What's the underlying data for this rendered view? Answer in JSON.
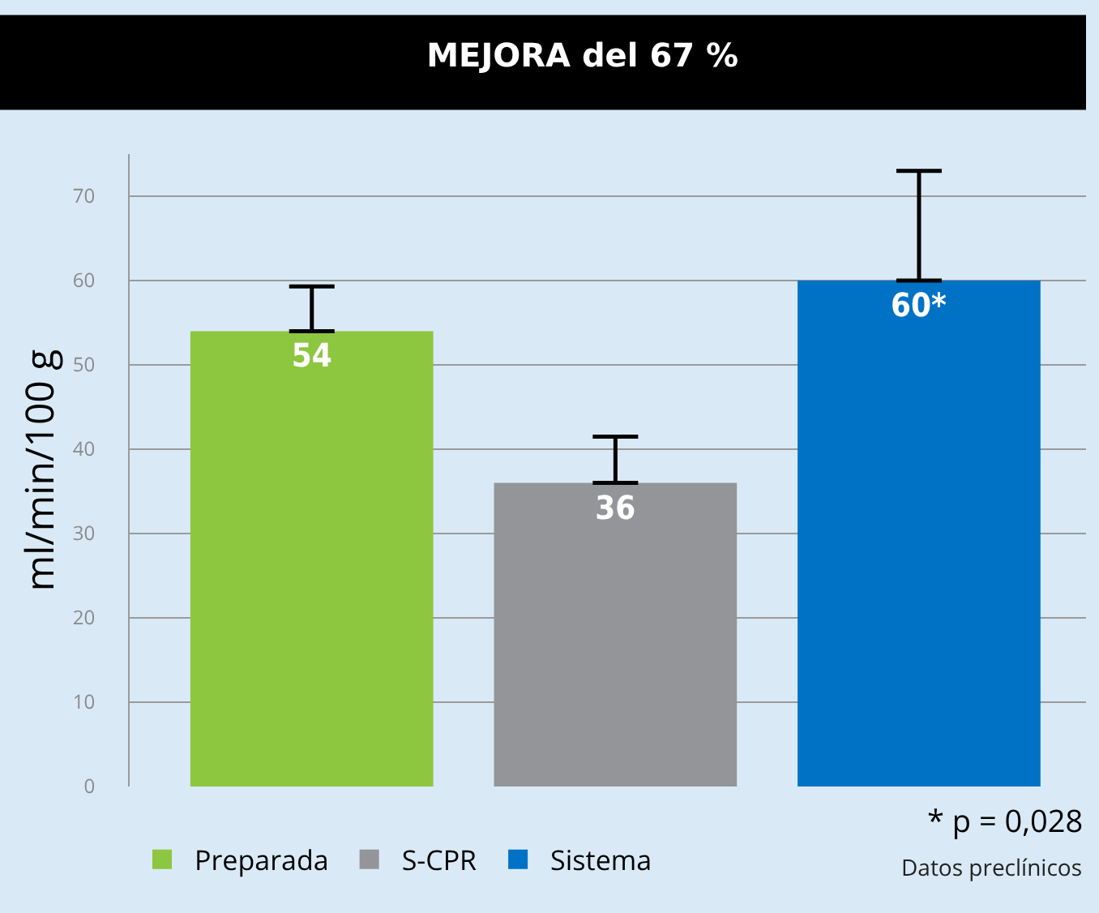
{
  "chart_data": {
    "type": "bar",
    "title": "MEJORA del 67 %",
    "ylabel": "ml/min/100 g",
    "categories": [
      null,
      null,
      null
    ],
    "series": [
      {
        "name": "Preparada",
        "color": "#8dc63f",
        "values": [
          54,
          null,
          null
        ],
        "errors": [
          [
            54,
            59.3
          ],
          null,
          null
        ],
        "value_labels": [
          "54",
          null,
          null
        ]
      },
      {
        "name": "S-CPR",
        "color": "#939598",
        "values": [
          null,
          36,
          null
        ],
        "errors": [
          null,
          [
            36,
            41.5
          ],
          null
        ],
        "value_labels": [
          null,
          "36",
          null
        ]
      },
      {
        "name": "Sistema",
        "color": "#0072c6",
        "values": [
          null,
          null,
          60
        ],
        "errors": [
          null,
          null,
          [
            60,
            73
          ]
        ],
        "value_labels": [
          null,
          null,
          "60*"
        ]
      }
    ],
    "ylim": [
      0,
      75
    ],
    "yticks": [
      0,
      10,
      20,
      30,
      40,
      50,
      60,
      70
    ],
    "grid": "y",
    "legend": "bottom",
    "annotations": [
      "* p = 0,028",
      "Datos preclínicos"
    ]
  }
}
